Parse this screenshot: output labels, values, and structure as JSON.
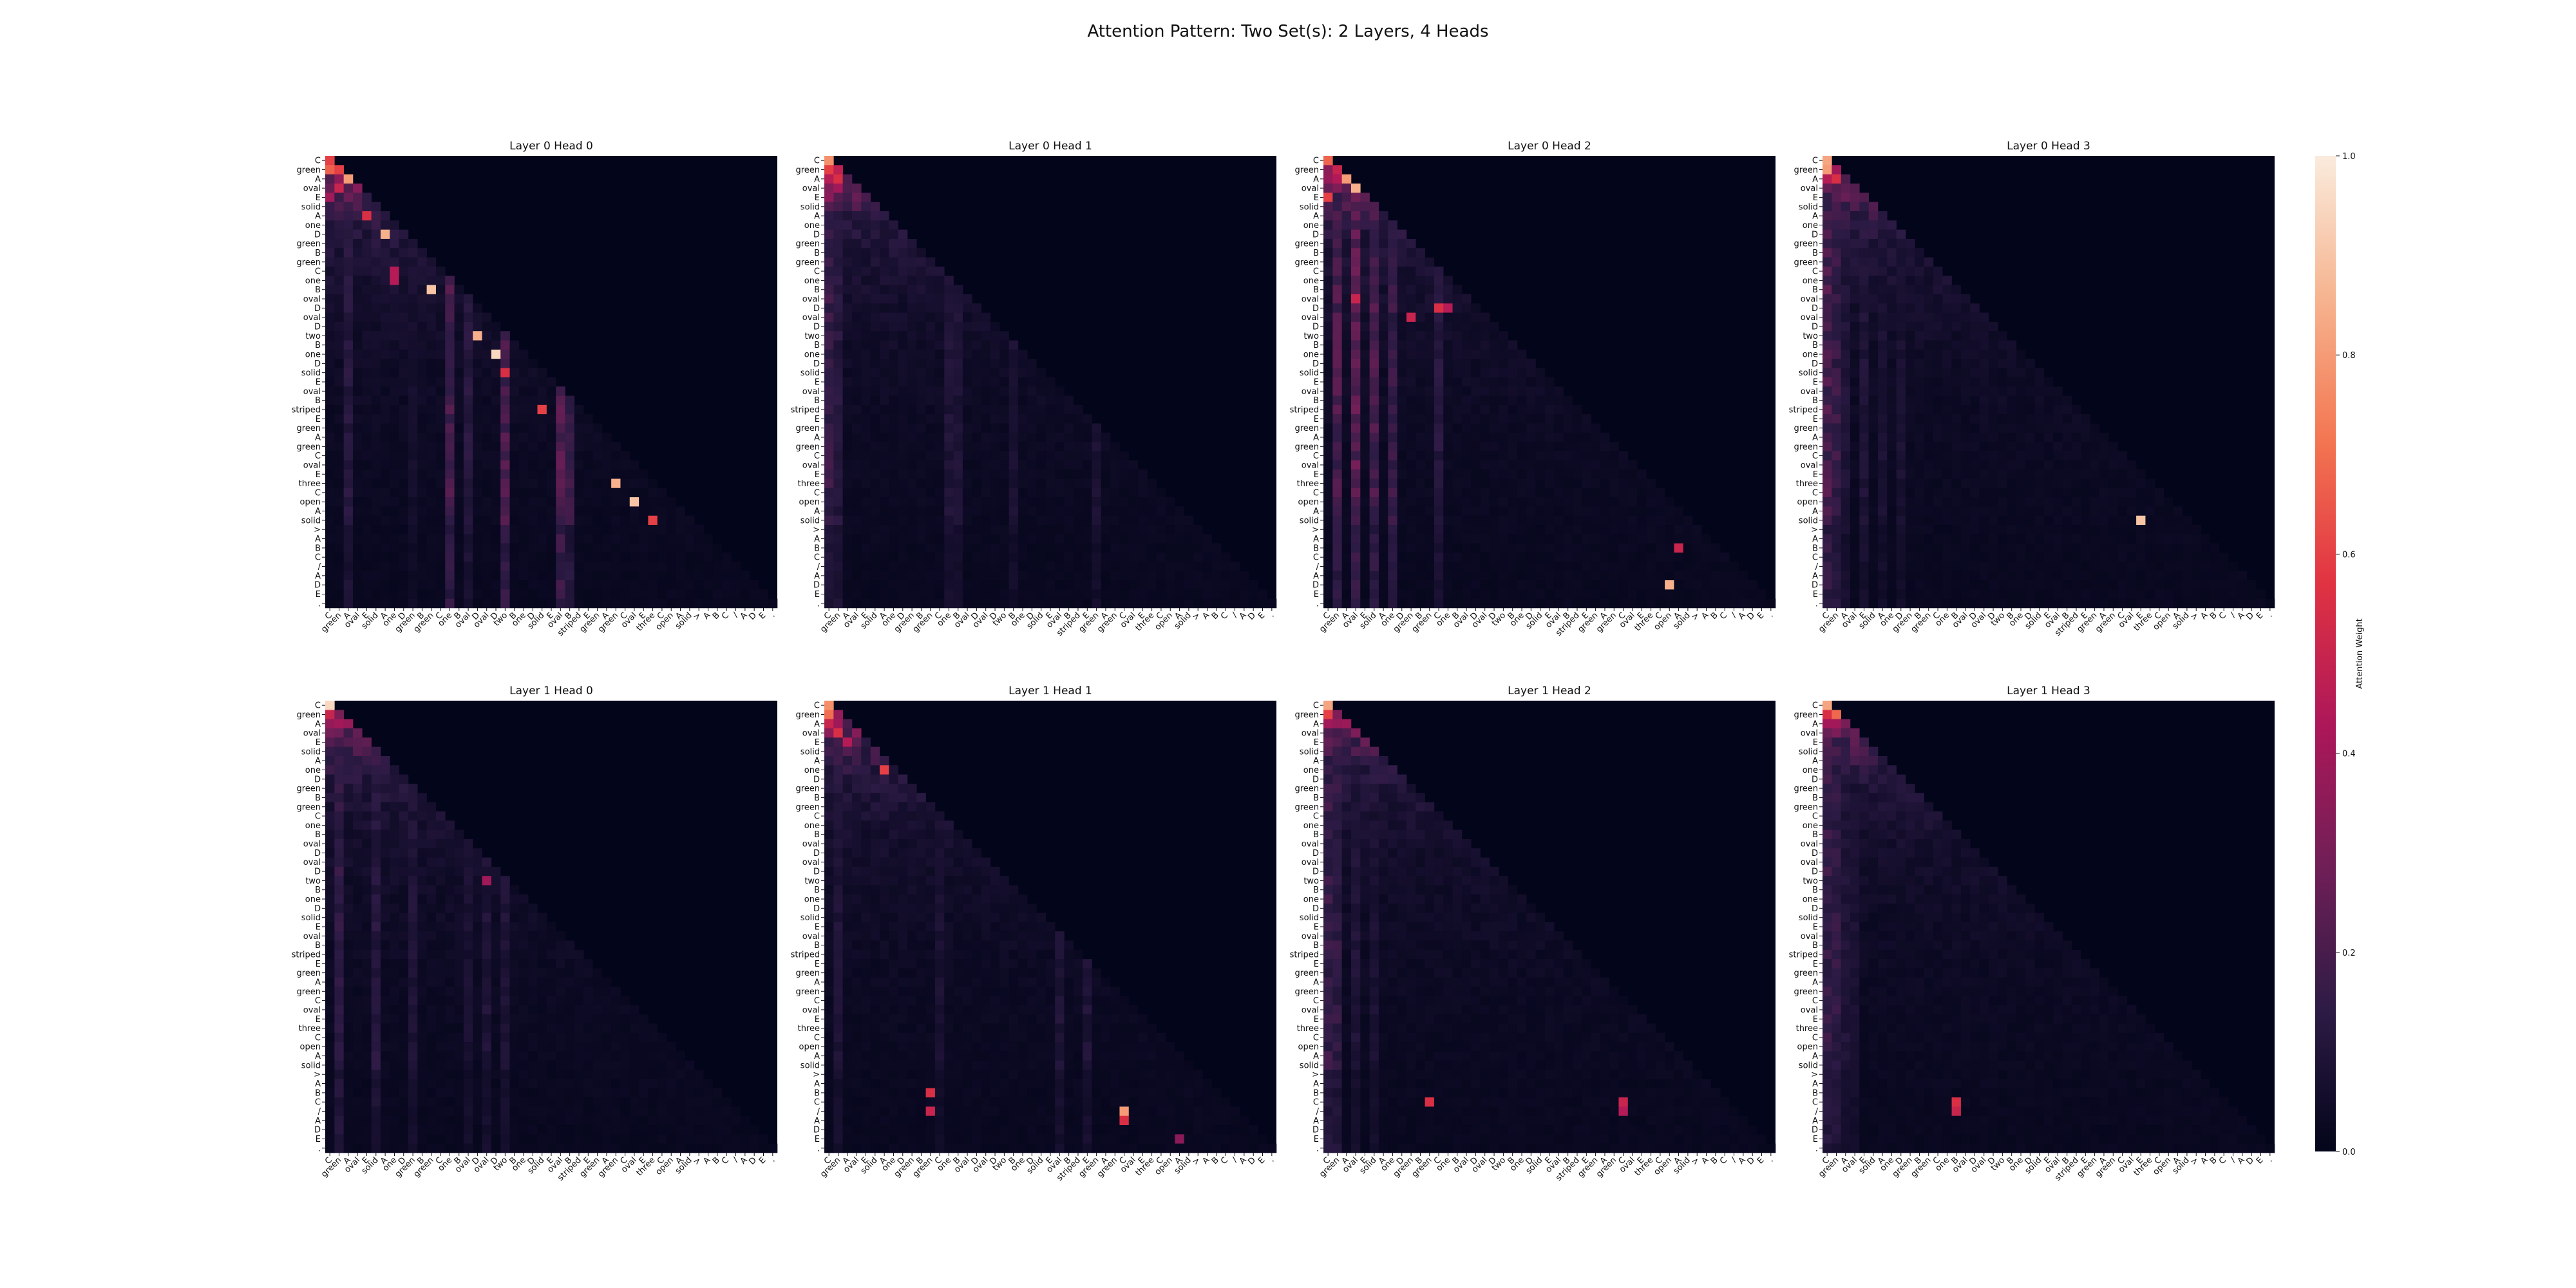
{
  "title": "Attention Pattern: Two Set(s): 2 Layers, 4 Heads",
  "chart_data": {
    "type": "heatmap",
    "title": "Attention Pattern: Two Set(s): 2 Layers, 4 Heads",
    "tokens": [
      "C",
      "green",
      "A",
      "oval",
      "E",
      "solid",
      "A",
      "one",
      "D",
      "green",
      "B",
      "green",
      "C",
      "one",
      "B",
      "oval",
      "D",
      "oval",
      "D",
      "two",
      "B",
      "one",
      "D",
      "solid",
      "E",
      "oval",
      "B",
      "striped",
      "E",
      "green",
      "A",
      "green",
      "C",
      "oval",
      "E",
      "three",
      "C",
      "open",
      "A",
      "solid",
      ">",
      "A",
      "B",
      "C",
      "/",
      "A",
      "D",
      "E",
      "."
    ],
    "mask": "causal lower-triangular",
    "colorbar": {
      "label": "Attention Weight",
      "ticks": [
        0.0,
        0.2,
        0.4,
        0.6,
        0.8,
        1.0
      ],
      "range": [
        0,
        1
      ]
    },
    "colors": {
      "stops": [
        "#03051a",
        "#2d1b45",
        "#701f57",
        "#ad1759",
        "#e13342",
        "#f37651",
        "#f6b48f",
        "#faebdd"
      ]
    },
    "panels": [
      {
        "title": "Layer 0 Head 0",
        "cols": [
          {
            "c": 2,
            "v": 0.15
          },
          {
            "c": 9,
            "v": 0.08
          },
          {
            "c": 13,
            "v": 0.25
          },
          {
            "c": 19,
            "v": 0.25
          },
          {
            "c": 25,
            "v": 0.28
          },
          {
            "c": 26,
            "v": 0.2
          },
          {
            "c": 15,
            "v": 0.15
          }
        ],
        "peaks": [
          {
            "r": 2,
            "c": 2,
            "v": 0.8
          },
          {
            "r": 3,
            "c": 1,
            "v": 0.5
          },
          {
            "r": 4,
            "c": 0,
            "v": 0.4
          },
          {
            "r": 6,
            "c": 4,
            "v": 0.55
          },
          {
            "r": 8,
            "c": 6,
            "v": 0.85
          },
          {
            "r": 12,
            "c": 7,
            "v": 0.45
          },
          {
            "r": 13,
            "c": 7,
            "v": 0.45
          },
          {
            "r": 14,
            "c": 11,
            "v": 0.9
          },
          {
            "r": 19,
            "c": 16,
            "v": 0.85
          },
          {
            "r": 21,
            "c": 18,
            "v": 0.95
          },
          {
            "r": 23,
            "c": 19,
            "v": 0.55
          },
          {
            "r": 27,
            "c": 23,
            "v": 0.6
          },
          {
            "r": 35,
            "c": 31,
            "v": 0.85
          },
          {
            "r": 37,
            "c": 33,
            "v": 0.9
          },
          {
            "r": 39,
            "c": 35,
            "v": 0.6
          }
        ]
      },
      {
        "title": "Layer 0 Head 1",
        "cols": [
          {
            "c": 0,
            "v": 0.2
          },
          {
            "c": 1,
            "v": 0.15
          },
          {
            "c": 13,
            "v": 0.12
          },
          {
            "c": 14,
            "v": 0.12
          },
          {
            "c": 20,
            "v": 0.1
          },
          {
            "c": 29,
            "v": 0.1
          }
        ],
        "peaks": [
          {
            "r": 2,
            "c": 1,
            "v": 0.55
          },
          {
            "r": 3,
            "c": 1,
            "v": 0.4
          },
          {
            "r": 4,
            "c": 0,
            "v": 0.35
          }
        ]
      },
      {
        "title": "Layer 0 Head 2",
        "cols": [
          {
            "c": 1,
            "v": 0.25
          },
          {
            "c": 3,
            "v": 0.3
          },
          {
            "c": 5,
            "v": 0.25
          },
          {
            "c": 7,
            "v": 0.2
          },
          {
            "c": 12,
            "v": 0.15
          }
        ],
        "peaks": [
          {
            "r": 2,
            "c": 2,
            "v": 0.8
          },
          {
            "r": 3,
            "c": 3,
            "v": 0.85
          },
          {
            "r": 4,
            "c": 0,
            "v": 0.6
          },
          {
            "r": 15,
            "c": 3,
            "v": 0.5
          },
          {
            "r": 16,
            "c": 13,
            "v": 0.45
          },
          {
            "r": 17,
            "c": 9,
            "v": 0.5
          },
          {
            "r": 16,
            "c": 12,
            "v": 0.55
          },
          {
            "r": 42,
            "c": 38,
            "v": 0.5
          },
          {
            "r": 46,
            "c": 37,
            "v": 0.85
          }
        ]
      },
      {
        "title": "Layer 0 Head 3",
        "cols": [
          {
            "c": 0,
            "v": 0.25
          },
          {
            "c": 1,
            "v": 0.2
          },
          {
            "c": 2,
            "v": 0.12
          },
          {
            "c": 4,
            "v": 0.12
          },
          {
            "c": 6,
            "v": 0.1
          },
          {
            "c": 8,
            "v": 0.1
          }
        ],
        "peaks": [
          {
            "r": 1,
            "c": 0,
            "v": 0.8
          },
          {
            "r": 2,
            "c": 1,
            "v": 0.55
          },
          {
            "r": 39,
            "c": 34,
            "v": 0.9
          }
        ]
      },
      {
        "title": "Layer 1 Head 0",
        "cols": [
          {
            "c": 1,
            "v": 0.18
          },
          {
            "c": 5,
            "v": 0.15
          },
          {
            "c": 9,
            "v": 0.12
          },
          {
            "c": 15,
            "v": 0.1
          },
          {
            "c": 17,
            "v": 0.12
          },
          {
            "c": 19,
            "v": 0.12
          }
        ],
        "peaks": [
          {
            "r": 1,
            "c": 0,
            "v": 0.5
          },
          {
            "r": 2,
            "c": 1,
            "v": 0.4
          },
          {
            "r": 19,
            "c": 17,
            "v": 0.4
          }
        ]
      },
      {
        "title": "Layer 1 Head 1",
        "cols": [
          {
            "c": 1,
            "v": 0.12
          },
          {
            "c": 12,
            "v": 0.1
          },
          {
            "c": 25,
            "v": 0.12
          },
          {
            "c": 28,
            "v": 0.12
          }
        ],
        "peaks": [
          {
            "r": 1,
            "c": 0,
            "v": 0.7
          },
          {
            "r": 2,
            "c": 0,
            "v": 0.5
          },
          {
            "r": 3,
            "c": 1,
            "v": 0.55
          },
          {
            "r": 4,
            "c": 2,
            "v": 0.45
          },
          {
            "r": 7,
            "c": 6,
            "v": 0.6
          },
          {
            "r": 42,
            "c": 11,
            "v": 0.55
          },
          {
            "r": 44,
            "c": 11,
            "v": 0.5
          },
          {
            "r": 44,
            "c": 32,
            "v": 0.8
          },
          {
            "r": 45,
            "c": 32,
            "v": 0.55
          },
          {
            "r": 47,
            "c": 38,
            "v": 0.35
          }
        ]
      },
      {
        "title": "Layer 1 Head 2",
        "cols": [
          {
            "c": 0,
            "v": 0.2
          },
          {
            "c": 1,
            "v": 0.18
          },
          {
            "c": 3,
            "v": 0.12
          },
          {
            "c": 5,
            "v": 0.1
          }
        ],
        "peaks": [
          {
            "r": 1,
            "c": 0,
            "v": 0.6
          },
          {
            "r": 2,
            "c": 0,
            "v": 0.4
          },
          {
            "r": 43,
            "c": 11,
            "v": 0.55
          },
          {
            "r": 43,
            "c": 32,
            "v": 0.5
          },
          {
            "r": 44,
            "c": 32,
            "v": 0.45
          }
        ]
      },
      {
        "title": "Layer 1 Head 3",
        "cols": [
          {
            "c": 0,
            "v": 0.2
          },
          {
            "c": 1,
            "v": 0.18
          },
          {
            "c": 2,
            "v": 0.12
          },
          {
            "c": 3,
            "v": 0.1
          }
        ],
        "peaks": [
          {
            "r": 1,
            "c": 0,
            "v": 0.55
          },
          {
            "r": 2,
            "c": 1,
            "v": 0.4
          },
          {
            "r": 43,
            "c": 14,
            "v": 0.55
          },
          {
            "r": 44,
            "c": 14,
            "v": 0.5
          }
        ]
      }
    ]
  }
}
